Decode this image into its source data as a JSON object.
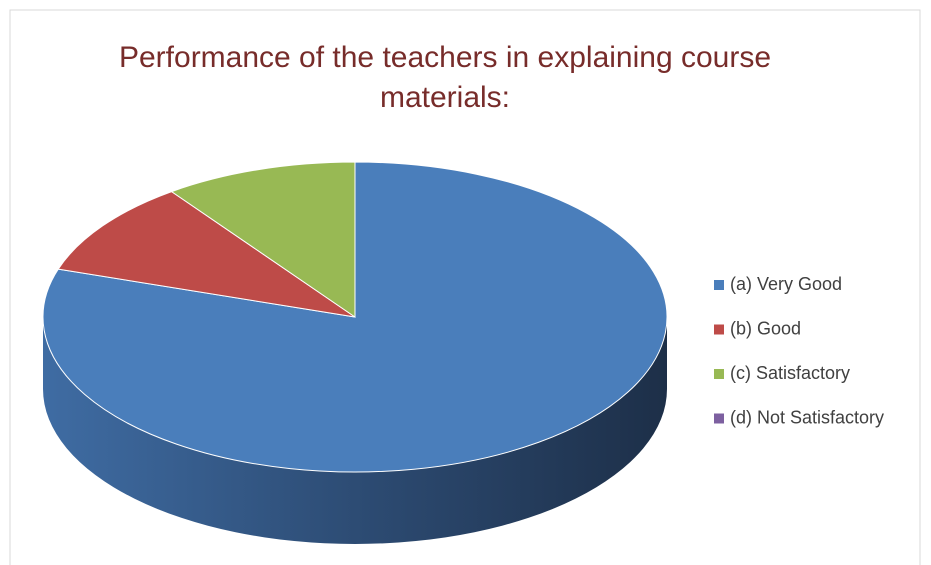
{
  "chart_data": {
    "type": "pie",
    "title": "Performance of the teachers in explaining course materials:",
    "categories": [
      "(a) Very Good",
      "(b) Good",
      "(c) Satisfactory",
      "(d) Not Satisfactory"
    ],
    "values": [
      80,
      10,
      10,
      0
    ],
    "colors": [
      "#4a7ebb",
      "#be4b48",
      "#98b954",
      "#7d60a0"
    ],
    "legend": "right"
  }
}
